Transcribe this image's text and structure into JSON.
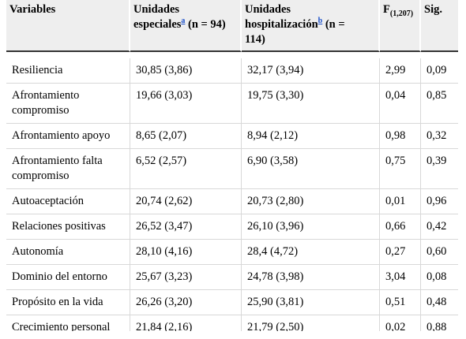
{
  "table": {
    "headers": {
      "variables": "Variables",
      "col2": {
        "line1": "Unidades",
        "line2": "especiales",
        "footnote": "a",
        "suffix": " (n = 94)"
      },
      "col3": {
        "line1": "Unidades",
        "line2": "hospitalización",
        "footnote": "b",
        "suffix": " (n =",
        "line3": "114)"
      },
      "f": {
        "label": "F",
        "subscript": "(1,207)"
      },
      "sig": "Sig."
    },
    "rows": [
      {
        "variable": "Resiliencia",
        "especiales": "30,85 (3,86)",
        "hospitalizacion": "32,17 (3,94)",
        "f": "2,99",
        "sig": "0,09"
      },
      {
        "variable": "Afrontamiento compromiso",
        "especiales": "19,66 (3,03)",
        "hospitalizacion": "19,75 (3,30)",
        "f": "0,04",
        "sig": "0,85"
      },
      {
        "variable": "Afrontamiento apoyo",
        "especiales": "8,65 (2,07)",
        "hospitalizacion": "8,94 (2,12)",
        "f": "0,98",
        "sig": "0,32"
      },
      {
        "variable": "Afrontamiento falta compromiso",
        "especiales": "6,52 (2,57)",
        "hospitalizacion": "6,90 (3,58)",
        "f": "0,75",
        "sig": "0,39"
      },
      {
        "variable": "Autoaceptación",
        "especiales": "20,74 (2,62)",
        "hospitalizacion": "20,73 (2,80)",
        "f": "0,01",
        "sig": "0,96"
      },
      {
        "variable": "Relaciones positivas",
        "especiales": "26,52 (3,47)",
        "hospitalizacion": "26,10 (3,96)",
        "f": "0,66",
        "sig": "0,42"
      },
      {
        "variable": "Autonomía",
        "especiales": "28,10 (4,16)",
        "hospitalizacion": "28,4 (4,72)",
        "f": "0,27",
        "sig": "0,60"
      },
      {
        "variable": "Dominio del entorno",
        "especiales": "25,67 (3,23)",
        "hospitalizacion": "24,78 (3,98)",
        "f": "3,04",
        "sig": "0,08"
      },
      {
        "variable": "Propósito en la vida",
        "especiales": "26,26 (3,20)",
        "hospitalizacion": "25,90 (3,81)",
        "f": "0,51",
        "sig": "0,48"
      },
      {
        "variable": "Crecimiento personal",
        "especiales": "21,84 (2,16)",
        "hospitalizacion": "21,79 (2,50)",
        "f": "0,02",
        "sig": "0,88"
      }
    ]
  }
}
